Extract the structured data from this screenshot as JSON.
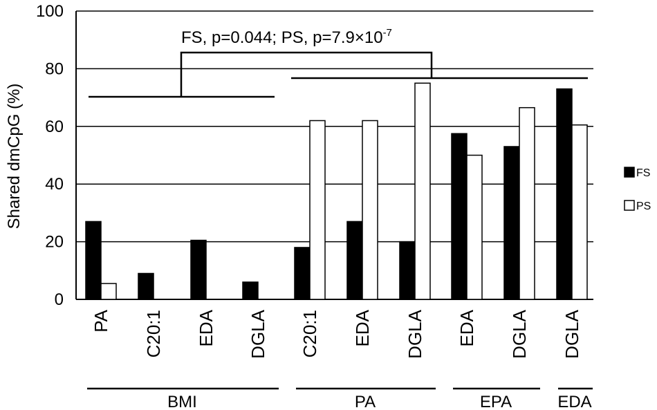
{
  "chart_data": {
    "type": "bar",
    "ylabel": "Shared dmCpG (%)",
    "ylim": [
      0,
      100
    ],
    "yticks": [
      0,
      20,
      40,
      60,
      80,
      100
    ],
    "grid": true,
    "legend_position": "right",
    "categories": [
      "PA",
      "C20:1",
      "EDA",
      "DGLA",
      "C20:1",
      "EDA",
      "DGLA",
      "EDA",
      "DGLA",
      "DGLA"
    ],
    "groups": [
      {
        "label": "BMI",
        "categories": [
          "PA",
          "C20:1",
          "EDA",
          "DGLA"
        ]
      },
      {
        "label": "PA",
        "categories": [
          "C20:1",
          "EDA",
          "DGLA"
        ]
      },
      {
        "label": "EPA",
        "categories": [
          "EDA",
          "DGLA"
        ]
      },
      {
        "label": "EDA",
        "categories": [
          "DGLA"
        ]
      }
    ],
    "series": [
      {
        "name": "FS",
        "color": "#000000",
        "values": [
          27,
          9,
          20.5,
          6,
          18,
          27,
          20,
          57.5,
          53,
          73
        ]
      },
      {
        "name": "PS",
        "color": "#ffffff",
        "values": [
          5.5,
          0,
          0,
          0,
          62,
          62,
          75,
          50,
          66.5,
          60.5
        ]
      }
    ],
    "annotation": {
      "text": "FS, p=0.044; PS, p=7.9×10",
      "superscript": "-7"
    }
  }
}
